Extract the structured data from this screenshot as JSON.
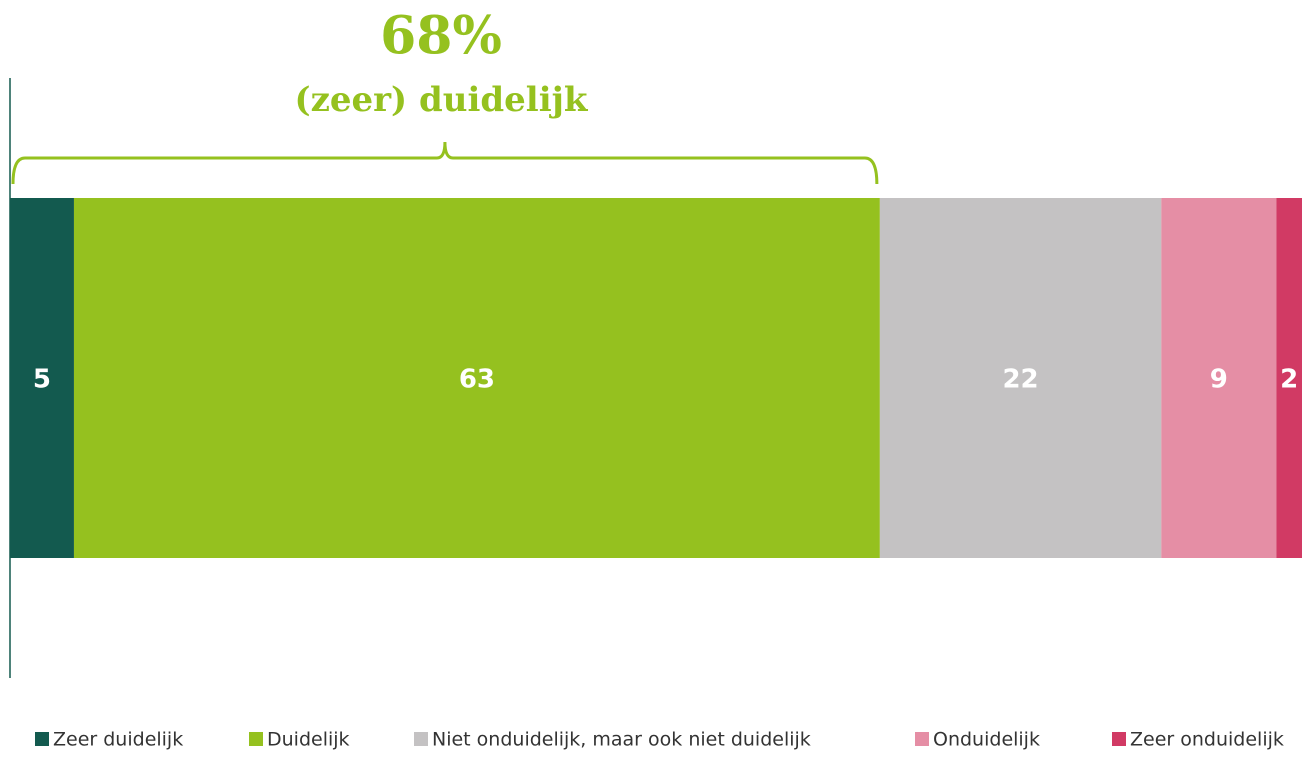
{
  "chart_data": {
    "type": "stacked_bar",
    "orientation": "horizontal",
    "annotation": {
      "value_text": "68%",
      "text": "(zeer) duidelijk",
      "color": "#95c11f"
    },
    "series": [
      {
        "name": "Zeer duidelijk",
        "color": "#135a4f",
        "values": [
          5
        ]
      },
      {
        "name": "Duidelijk",
        "color": "#95c11f",
        "values": [
          63
        ]
      },
      {
        "name": "Niet onduidelijk, maar ook niet duidelijk",
        "color": "#c4c2c3",
        "values": [
          22
        ]
      },
      {
        "name": "Onduidelijk",
        "color": "#e58ea5",
        "values": [
          9
        ]
      },
      {
        "name": "Zeer onduidelijk",
        "color": "#d13a64",
        "values": [
          2
        ]
      }
    ],
    "legend": "bottom"
  }
}
